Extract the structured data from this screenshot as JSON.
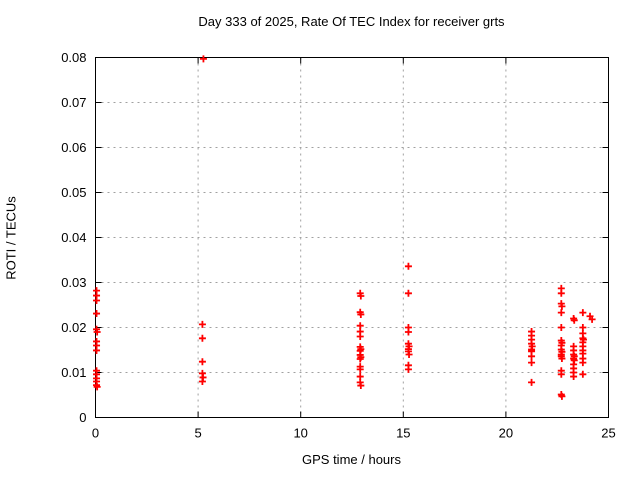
{
  "window": {
    "background": "#ffffff"
  },
  "chart_data": {
    "type": "scatter",
    "title": "Day 333 of 2025, Rate Of TEC Index for receiver grts",
    "xlabel": "GPS time / hours",
    "ylabel": "ROTI / TECUs",
    "xlim": [
      0,
      25
    ],
    "ylim": [
      0,
      0.08
    ],
    "x_ticks": [
      0,
      5,
      10,
      15,
      20,
      25
    ],
    "x_tick_labels": [
      "0",
      "5",
      "10",
      "15",
      "20",
      "25"
    ],
    "y_ticks": [
      0,
      0.01,
      0.02,
      0.03,
      0.04,
      0.05,
      0.06,
      0.07,
      0.08
    ],
    "y_tick_labels": [
      "0",
      "0.01",
      "0.02",
      "0.03",
      "0.04",
      "0.05",
      "0.06",
      "0.07",
      "0.08"
    ],
    "grid": true,
    "grid_style": "dashed",
    "legend": "none",
    "colors": {
      "marker": "#ff0000",
      "grid": "#a0a0a0",
      "axis": "#000000",
      "background": "#ffffff"
    },
    "marker": {
      "shape": "plus",
      "size": 7
    },
    "series": [
      {
        "name": "ROTI",
        "points": [
          [
            0.05,
            0.0282
          ],
          [
            0.05,
            0.0271
          ],
          [
            0.05,
            0.026
          ],
          [
            0.05,
            0.0231
          ],
          [
            0.05,
            0.0196
          ],
          [
            0.08,
            0.019
          ],
          [
            0.05,
            0.0169
          ],
          [
            0.05,
            0.016
          ],
          [
            0.05,
            0.0149
          ],
          [
            0.05,
            0.0104
          ],
          [
            0.05,
            0.0096
          ],
          [
            0.05,
            0.0087
          ],
          [
            0.05,
            0.008
          ],
          [
            0.05,
            0.0072
          ],
          [
            0.08,
            0.0068
          ],
          [
            5.26,
            0.0797
          ],
          [
            5.21,
            0.0207
          ],
          [
            5.21,
            0.0176
          ],
          [
            5.21,
            0.0124
          ],
          [
            5.21,
            0.0098
          ],
          [
            5.24,
            0.0089
          ],
          [
            5.21,
            0.008
          ],
          [
            12.9,
            0.0276
          ],
          [
            12.93,
            0.027
          ],
          [
            12.9,
            0.0234
          ],
          [
            12.93,
            0.0229
          ],
          [
            12.9,
            0.0204
          ],
          [
            12.9,
            0.0191
          ],
          [
            12.9,
            0.018
          ],
          [
            12.9,
            0.0157
          ],
          [
            12.93,
            0.0152
          ],
          [
            12.9,
            0.0148
          ],
          [
            12.9,
            0.0139
          ],
          [
            12.93,
            0.0134
          ],
          [
            12.9,
            0.013
          ],
          [
            12.9,
            0.0113
          ],
          [
            12.9,
            0.0107
          ],
          [
            12.9,
            0.0091
          ],
          [
            12.9,
            0.0078
          ],
          [
            12.93,
            0.0071
          ],
          [
            15.25,
            0.0336
          ],
          [
            15.25,
            0.0276
          ],
          [
            15.25,
            0.02
          ],
          [
            15.25,
            0.019
          ],
          [
            15.25,
            0.0164
          ],
          [
            15.28,
            0.0158
          ],
          [
            15.25,
            0.0152
          ],
          [
            15.25,
            0.0147
          ],
          [
            15.28,
            0.014
          ],
          [
            15.25,
            0.0116
          ],
          [
            15.25,
            0.0107
          ],
          [
            21.25,
            0.0191
          ],
          [
            21.25,
            0.0182
          ],
          [
            21.25,
            0.0173
          ],
          [
            21.25,
            0.0164
          ],
          [
            21.28,
            0.0158
          ],
          [
            21.25,
            0.0151
          ],
          [
            21.25,
            0.0147
          ],
          [
            21.25,
            0.0136
          ],
          [
            21.25,
            0.0122
          ],
          [
            21.25,
            0.0078
          ],
          [
            22.7,
            0.0287
          ],
          [
            22.7,
            0.0276
          ],
          [
            22.7,
            0.0253
          ],
          [
            22.73,
            0.0247
          ],
          [
            22.7,
            0.0233
          ],
          [
            22.7,
            0.02
          ],
          [
            22.7,
            0.0171
          ],
          [
            22.73,
            0.0166
          ],
          [
            22.7,
            0.016
          ],
          [
            22.7,
            0.0151
          ],
          [
            22.73,
            0.0146
          ],
          [
            22.7,
            0.014
          ],
          [
            22.7,
            0.0136
          ],
          [
            22.73,
            0.0131
          ],
          [
            22.7,
            0.0104
          ],
          [
            22.7,
            0.0096
          ],
          [
            22.7,
            0.0051
          ],
          [
            22.73,
            0.0047
          ],
          [
            23.3,
            0.022
          ],
          [
            23.33,
            0.0216
          ],
          [
            23.3,
            0.0158
          ],
          [
            23.3,
            0.0149
          ],
          [
            23.3,
            0.014
          ],
          [
            23.33,
            0.0136
          ],
          [
            23.3,
            0.0131
          ],
          [
            23.33,
            0.0127
          ],
          [
            23.3,
            0.0118
          ],
          [
            23.3,
            0.0109
          ],
          [
            23.3,
            0.01
          ],
          [
            23.3,
            0.0091
          ],
          [
            23.75,
            0.0233
          ],
          [
            23.75,
            0.02
          ],
          [
            23.75,
            0.0187
          ],
          [
            23.75,
            0.0176
          ],
          [
            23.78,
            0.0173
          ],
          [
            23.75,
            0.0167
          ],
          [
            23.75,
            0.0158
          ],
          [
            23.75,
            0.0149
          ],
          [
            23.75,
            0.0142
          ],
          [
            23.75,
            0.0131
          ],
          [
            23.75,
            0.0122
          ],
          [
            23.75,
            0.0096
          ],
          [
            24.1,
            0.0225
          ],
          [
            24.2,
            0.0218
          ]
        ]
      }
    ]
  }
}
